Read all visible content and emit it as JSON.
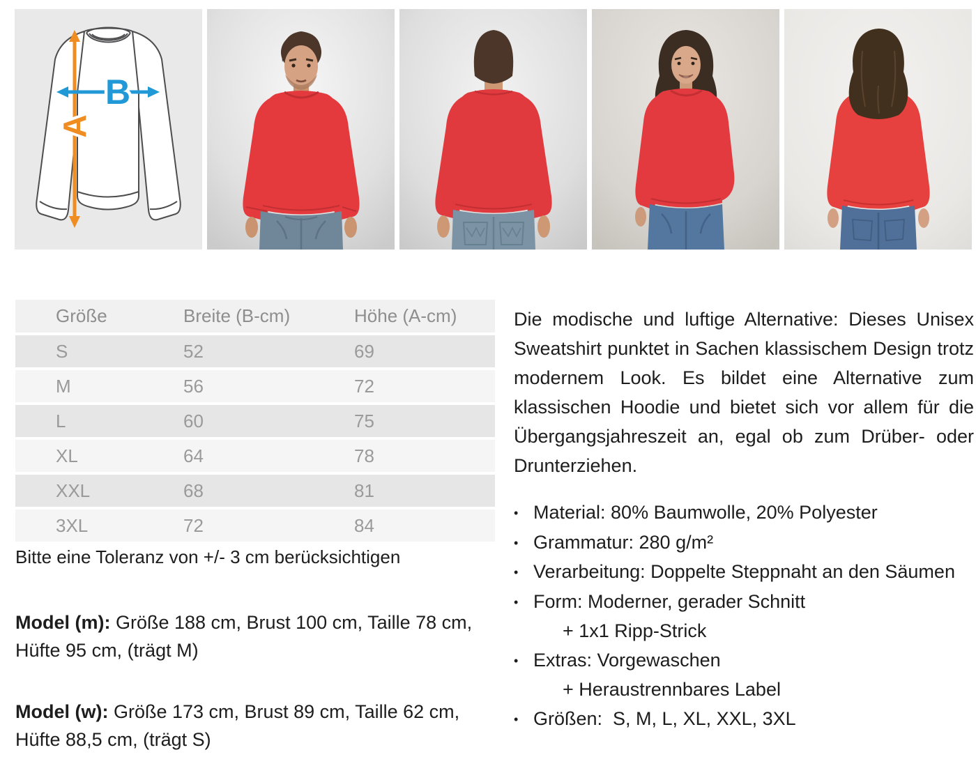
{
  "size_diagram": {
    "label_height": "A",
    "label_width": "B",
    "height_arrow_color": "#ef8d23",
    "width_arrow_color": "#2199d6"
  },
  "photos": {
    "shirt_color": "#e43a3e",
    "items": [
      {
        "name": "man-front"
      },
      {
        "name": "man-back"
      },
      {
        "name": "woman-front"
      },
      {
        "name": "woman-back"
      }
    ]
  },
  "size_table": {
    "headers": [
      "Größe",
      "Breite (B-cm)",
      "Höhe (A-cm)"
    ],
    "rows": [
      [
        "S",
        "52",
        "69"
      ],
      [
        "M",
        "56",
        "72"
      ],
      [
        "L",
        "60",
        "75"
      ],
      [
        "XL",
        "64",
        "78"
      ],
      [
        "XXL",
        "68",
        "81"
      ],
      [
        "3XL",
        "72",
        "84"
      ]
    ],
    "tolerance_note": "Bitte eine Toleranz von +/- 3 cm berücksichtigen"
  },
  "models": [
    {
      "label": "Model (m):",
      "text": "Größe 188 cm, Brust 100 cm, Taille 78 cm, Hüfte 95 cm, (trägt M)"
    },
    {
      "label": "Model (w):",
      "text": "Größe 173 cm, Brust 89 cm, Taille 62 cm, Hüfte 88,5 cm, (trägt S)"
    }
  ],
  "description": {
    "paragraph": "Die modische und luftige Alternative: Dieses Unisex Sweatshirt punktet in Sachen klassischem Design trotz modernem Look. Es bildet eine Alternative zum klassischen Hoodie und bietet sich vor allem für die Übergangsjahreszeit an, egal ob zum Drüber- oder Drunterziehen.",
    "bullets": [
      {
        "text": "Material: 80% Baumwolle, 20% Polyester"
      },
      {
        "text": "Grammatur: 280 g/m²"
      },
      {
        "text": "Verarbeitung: Doppelte Steppnaht an den Säumen"
      },
      {
        "text": "Form: Moderner, gerader Schnitt",
        "sub": "+ 1x1 Ripp-Strick"
      },
      {
        "text": "Extras: Vorgewaschen",
        "sub": "+ Heraustrennbares Label"
      },
      {
        "text": "Größen:  S, M, L, XL, XXL, 3XL"
      }
    ]
  }
}
